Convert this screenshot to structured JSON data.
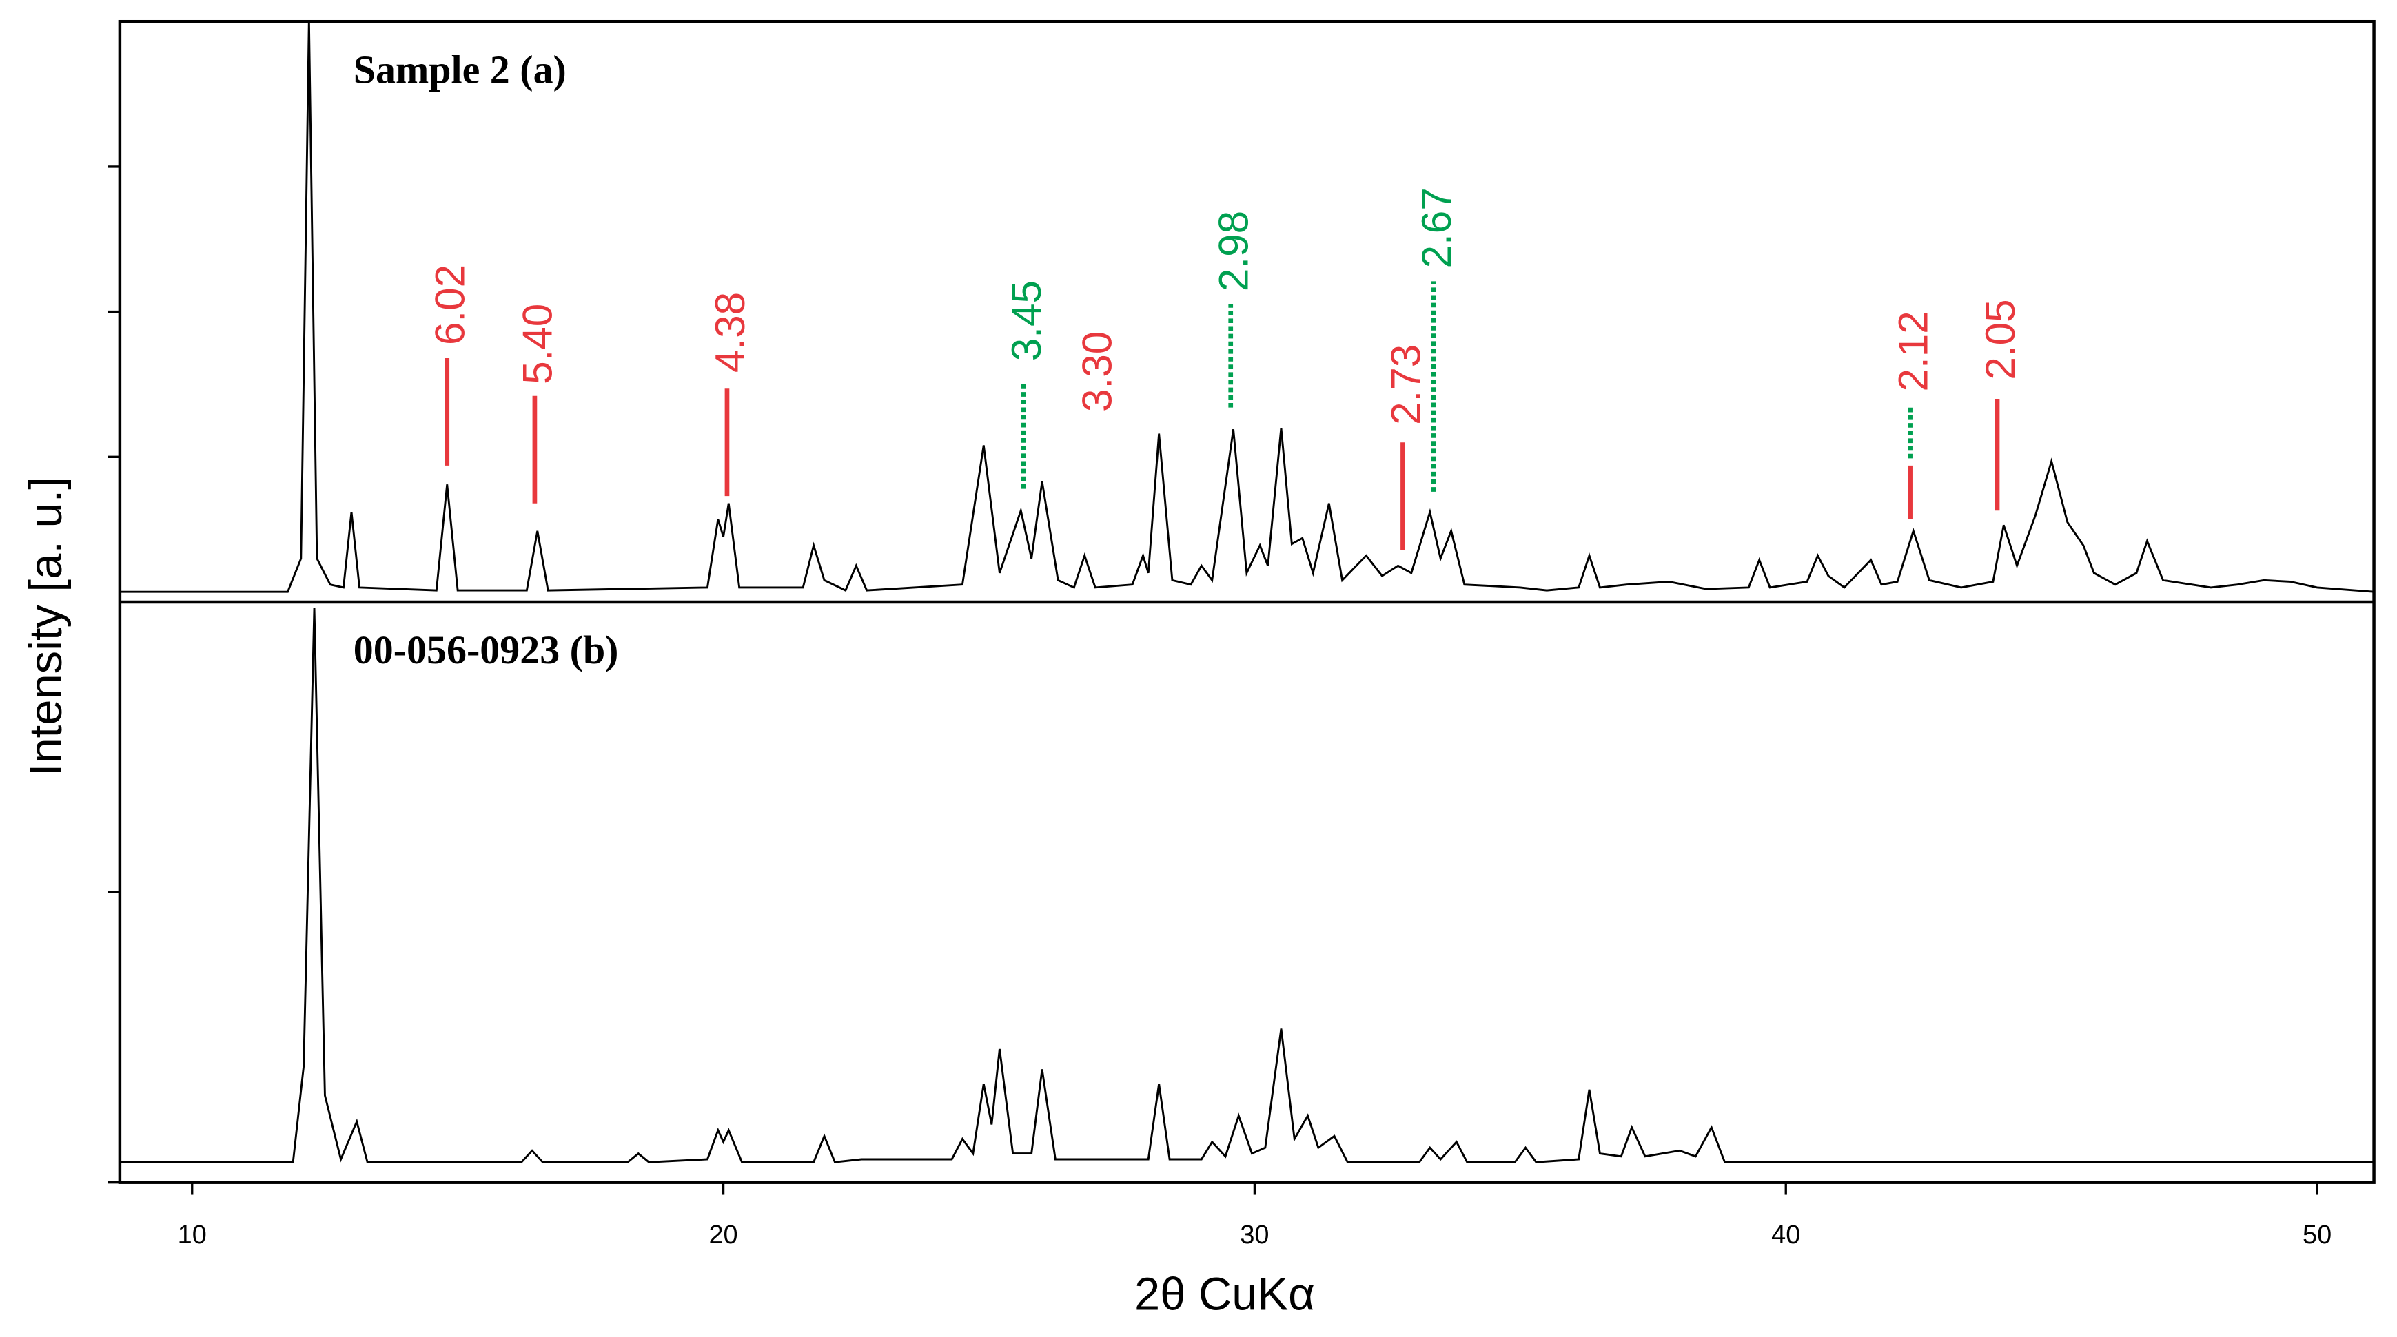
{
  "chart_data": [
    {
      "type": "line",
      "title": "Sample 2 (a)",
      "y_label": "Intensity [a. u.]",
      "xlim": [
        8.64,
        51.07
      ],
      "ylim": [
        0,
        400
      ],
      "yticks": [
        100,
        200,
        300
      ],
      "x": [
        8.64,
        11.8,
        12.05,
        12.2,
        12.35,
        12.6,
        12.85,
        13.0,
        13.15,
        14.6,
        14.8,
        15.0,
        16.3,
        16.5,
        16.7,
        19.7,
        19.9,
        20.0,
        20.1,
        20.3,
        21.5,
        21.7,
        21.9,
        22.3,
        22.5,
        22.7,
        24.5,
        24.9,
        25.2,
        25.6,
        25.8,
        26.0,
        26.3,
        26.6,
        26.8,
        27.0,
        27.7,
        27.9,
        28.0,
        28.2,
        28.45,
        28.8,
        29.0,
        29.2,
        29.6,
        29.85,
        30.1,
        30.25,
        30.5,
        30.7,
        30.9,
        31.1,
        31.4,
        31.65,
        32.1,
        32.4,
        32.7,
        32.95,
        33.3,
        33.5,
        33.7,
        33.95,
        35.0,
        35.5,
        36.1,
        36.3,
        36.5,
        37.0,
        37.8,
        38.5,
        39.3,
        39.5,
        39.7,
        40.4,
        40.6,
        40.8,
        41.1,
        41.6,
        41.8,
        42.1,
        42.4,
        42.7,
        43.3,
        43.9,
        44.1,
        44.35,
        44.7,
        45.0,
        45.3,
        45.6,
        45.8,
        46.2,
        46.6,
        46.8,
        47.1,
        48.0,
        48.5,
        49.0,
        49.5,
        50.0,
        51.07
      ],
      "series": [
        {
          "color": "#000000",
          "values": [
            7,
            7,
            30,
            400,
            30,
            12,
            10,
            62,
            10,
            8,
            81,
            8,
            8,
            49,
            8,
            10,
            57,
            45,
            68,
            10,
            10,
            39,
            15,
            8,
            25,
            8,
            12,
            108,
            20,
            63,
            30,
            83,
            15,
            10,
            32,
            10,
            12,
            32,
            20,
            116,
            15,
            12,
            25,
            15,
            119,
            20,
            39,
            25,
            120,
            40,
            44,
            20,
            68,
            15,
            32,
            18,
            25,
            20,
            62,
            30,
            49,
            12,
            10,
            8,
            10,
            32,
            10,
            12,
            14,
            9,
            10,
            29,
            10,
            14,
            32,
            18,
            10,
            29,
            12,
            14,
            49,
            15,
            10,
            14,
            53,
            25,
            60,
            97,
            55,
            39,
            20,
            12,
            20,
            42,
            15,
            10,
            12,
            15,
            14,
            10,
            7
          ]
        }
      ],
      "annotations": [
        {
          "text": "6.02",
          "x": 14.8,
          "y": 177,
          "color": "#e8383d",
          "segments": [
            {
              "from": 94,
              "to": 168,
              "color": "#e8383d",
              "dashed": false
            }
          ]
        },
        {
          "text": "5.40",
          "x": 16.45,
          "y": 150,
          "color": "#e8383d",
          "segments": [
            {
              "from": 68,
              "to": 142,
              "color": "#e8383d",
              "dashed": false
            }
          ]
        },
        {
          "text": "4.38",
          "x": 20.07,
          "y": 158,
          "color": "#e8383d",
          "segments": [
            {
              "from": 73,
              "to": 147,
              "color": "#e8383d",
              "dashed": false
            }
          ]
        },
        {
          "text": "3.45",
          "x": 25.65,
          "y": 166,
          "color": "#00a050",
          "segments": [
            {
              "from": 78,
              "to": 150,
              "color": "#00a050",
              "dashed": true
            }
          ]
        },
        {
          "text": "3.30",
          "x": 26.98,
          "y": 131,
          "color": "#e8383d",
          "segments": []
        },
        {
          "text": "2.98",
          "x": 29.55,
          "y": 214,
          "color": "#00a050",
          "segments": [
            {
              "from": 134,
              "to": 205,
              "color": "#00a050",
              "dashed": true
            }
          ]
        },
        {
          "text": "2.73",
          "x": 32.79,
          "y": 122,
          "color": "#e8383d",
          "segments": [
            {
              "from": 36,
              "to": 110,
              "color": "#e8383d",
              "dashed": false
            }
          ]
        },
        {
          "text": "2.67",
          "x": 33.37,
          "y": 230,
          "color": "#00a050",
          "segments": [
            {
              "from": 76,
              "to": 221,
              "color": "#00a050",
              "dashed": true
            }
          ]
        },
        {
          "text": "2.12",
          "x": 42.34,
          "y": 145,
          "color": "#e8383d",
          "segments": [
            {
              "from": 99,
              "to": 134,
              "color": "#00a050",
              "dashed": true
            },
            {
              "from": 57,
              "to": 94,
              "color": "#e8383d",
              "dashed": false
            }
          ]
        },
        {
          "text": "2.05",
          "x": 43.98,
          "y": 153,
          "color": "#e8383d",
          "segments": [
            {
              "from": 63,
              "to": 140,
              "color": "#e8383d",
              "dashed": false
            }
          ]
        }
      ]
    },
    {
      "type": "line",
      "title": "00-056-0923 (b)",
      "x_label": "2θ CuKα",
      "xlim": [
        8.64,
        51.07
      ],
      "xticks": [
        10,
        20,
        30,
        40,
        50
      ],
      "ylim": [
        0,
        200
      ],
      "yticks": [
        0,
        100
      ],
      "x": [
        8.64,
        11.9,
        12.1,
        12.3,
        12.5,
        12.8,
        13.1,
        13.3,
        16.2,
        16.4,
        16.6,
        18.2,
        18.4,
        18.6,
        19.7,
        19.9,
        20.0,
        20.1,
        20.35,
        21.7,
        21.9,
        22.1,
        22.6,
        23.0,
        24.3,
        24.5,
        24.7,
        24.9,
        25.05,
        25.2,
        25.45,
        25.8,
        26.0,
        26.25,
        28.0,
        28.2,
        28.4,
        29.0,
        29.2,
        29.45,
        29.7,
        29.95,
        30.2,
        30.5,
        30.75,
        31.0,
        31.2,
        31.5,
        31.75,
        33.1,
        33.3,
        33.5,
        33.8,
        34.0,
        34.9,
        35.1,
        35.3,
        36.1,
        36.3,
        36.5,
        36.9,
        37.1,
        37.35,
        38.0,
        38.3,
        38.6,
        38.85,
        51.07
      ],
      "series": [
        {
          "color": "#000000",
          "values": [
            7,
            7,
            40,
            198,
            30,
            8,
            21,
            7,
            7,
            11,
            7,
            7,
            10,
            7,
            8,
            18,
            14,
            18,
            7,
            7,
            16,
            7,
            8,
            8,
            8,
            15,
            10,
            34,
            20,
            46,
            10,
            10,
            39,
            8,
            8,
            34,
            8,
            8,
            14,
            9,
            23,
            10,
            12,
            53,
            15,
            23,
            12,
            16,
            7,
            7,
            12,
            8,
            14,
            7,
            7,
            12,
            7,
            8,
            32,
            10,
            9,
            19,
            9,
            11,
            9,
            19,
            7,
            7
          ]
        }
      ]
    }
  ]
}
